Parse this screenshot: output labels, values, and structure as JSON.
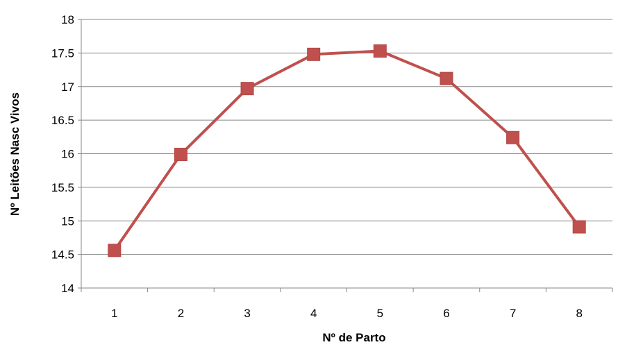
{
  "chart_data": {
    "type": "line",
    "title": "",
    "xlabel": "Nº de Parto",
    "ylabel": "Nº Leitões Nasc Vivos",
    "x": [
      "1",
      "2",
      "3",
      "4",
      "5",
      "6",
      "7",
      "8"
    ],
    "yticks": [
      "14",
      "14.5",
      "15",
      "15.5",
      "16",
      "16.5",
      "17",
      "17.5",
      "18"
    ],
    "ylim": [
      14,
      18
    ],
    "grid": true,
    "legend": "none",
    "series": [
      {
        "color": "#c0504d",
        "marker": "square",
        "values": [
          14.56,
          15.99,
          16.97,
          17.48,
          17.53,
          17.12,
          16.24,
          14.91
        ]
      }
    ]
  }
}
